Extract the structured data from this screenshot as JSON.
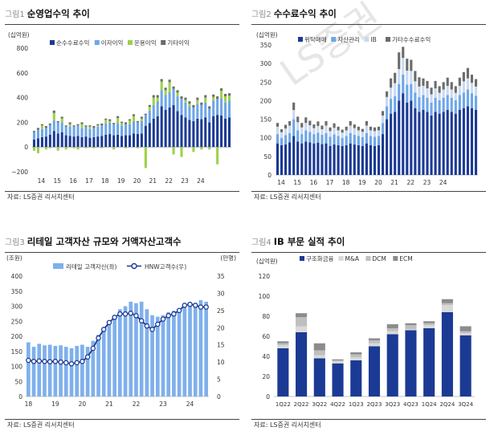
{
  "charts": [
    {
      "num": "그림1",
      "title": "순영업수익 추이",
      "source": "자료: LS증권 리서치센터",
      "unit": "(십억원)"
    },
    {
      "num": "그림2",
      "title": "수수료수익 추이",
      "source": "자료: LS증권 리서치센터",
      "unit": "(십억원)"
    },
    {
      "num": "그림3",
      "title": "리테일 고객자산 규모와 거액자산고객수",
      "source": "자료: LS증권 리서치센터",
      "unit": "(조원)",
      "unit_right": "(만명)"
    },
    {
      "num": "그림4",
      "title": "IB 부문 실적 추이",
      "source": "자료: LS증권 리서치센터",
      "unit": "(십억원)"
    }
  ],
  "chart_data": [
    {
      "type": "bar",
      "stacked": true,
      "series_names": [
        "순수수료수익",
        "이자이익",
        "운용이익",
        "기타이익"
      ],
      "colors": [
        "#1b3a94",
        "#6ea6e8",
        "#9ed14a",
        "#6b6b6b"
      ],
      "yticks": [
        -200,
        0,
        200,
        400,
        600,
        800
      ],
      "ylim": [
        -200,
        800
      ],
      "xticks": [
        "14",
        "15",
        "16",
        "17",
        "18",
        "19",
        "20",
        "21",
        "22",
        "23",
        "24"
      ],
      "series": [
        {
          "name": "순수수료수익",
          "values": [
            60,
            70,
            80,
            85,
            100,
            130,
            110,
            120,
            95,
            90,
            85,
            90,
            80,
            85,
            75,
            80,
            85,
            90,
            100,
            105,
            95,
            100,
            90,
            95,
            95,
            110,
            105,
            110,
            170,
            195,
            230,
            250,
            330,
            300,
            320,
            340,
            290,
            260,
            240,
            220,
            210,
            230,
            225,
            240,
            200,
            250,
            260,
            255,
            230,
            240
          ]
        },
        {
          "name": "이자이익",
          "values": [
            60,
            70,
            65,
            70,
            80,
            85,
            90,
            80,
            70,
            75,
            80,
            85,
            75,
            80,
            70,
            75,
            80,
            85,
            90,
            95,
            90,
            95,
            85,
            90,
            90,
            100,
            95,
            100,
            90,
            100,
            110,
            120,
            130,
            120,
            125,
            130,
            120,
            130,
            120,
            110,
            110,
            120,
            115,
            120,
            110,
            125,
            130,
            140,
            130,
            135
          ]
        },
        {
          "name": "운용이익",
          "values": [
            -30,
            -50,
            30,
            -20,
            -10,
            60,
            -30,
            30,
            -20,
            20,
            -10,
            -20,
            30,
            -10,
            20,
            -10,
            10,
            -10,
            30,
            10,
            -20,
            40,
            20,
            -10,
            30,
            40,
            -10,
            20,
            -170,
            30,
            60,
            30,
            70,
            40,
            80,
            -60,
            30,
            -80,
            20,
            20,
            -40,
            30,
            -20,
            40,
            -20,
            30,
            -140,
            60,
            50,
            40
          ]
        },
        {
          "name": "기타이익",
          "values": [
            10,
            15,
            10,
            15,
            10,
            20,
            10,
            15,
            10,
            15,
            10,
            10,
            15,
            10,
            10,
            15,
            10,
            15,
            10,
            15,
            10,
            15,
            10,
            15,
            10,
            15,
            10,
            15,
            10,
            15,
            20,
            20,
            20,
            20,
            20,
            20,
            20,
            20,
            20,
            20,
            20,
            20,
            20,
            20,
            20,
            20,
            20,
            20,
            20,
            20
          ]
        }
      ]
    },
    {
      "type": "bar",
      "stacked": true,
      "series_names": [
        "위탁매매",
        "자산관리",
        "IB",
        "기타수수료수익"
      ],
      "colors": [
        "#1b3a94",
        "#6ea6e8",
        "#c9d9f0",
        "#6b6b6b"
      ],
      "yticks": [
        0,
        50,
        100,
        150,
        200,
        250,
        300,
        350
      ],
      "ylim": [
        0,
        350
      ],
      "xticks": [
        "14",
        "15",
        "16",
        "17",
        "18",
        "19",
        "20",
        "21",
        "22",
        "23",
        "24"
      ],
      "series": [
        {
          "name": "위탁매매",
          "values": [
            85,
            80,
            82,
            88,
            105,
            90,
            85,
            90,
            88,
            85,
            87,
            83,
            85,
            78,
            82,
            80,
            78,
            80,
            85,
            82,
            80,
            78,
            85,
            80,
            78,
            80,
            110,
            150,
            165,
            170,
            200,
            220,
            195,
            200,
            180,
            170,
            175,
            170,
            160,
            170,
            165,
            170,
            175,
            170,
            165,
            175,
            180,
            185,
            180,
            175
          ]
        },
        {
          "name": "자산관리",
          "values": [
            25,
            20,
            25,
            25,
            45,
            30,
            25,
            30,
            28,
            25,
            27,
            25,
            28,
            25,
            27,
            25,
            22,
            25,
            28,
            26,
            25,
            24,
            28,
            25,
            25,
            25,
            30,
            35,
            40,
            42,
            45,
            50,
            48,
            45,
            42,
            40,
            40,
            38,
            35,
            38,
            36,
            38,
            40,
            38,
            36,
            40,
            42,
            45,
            40,
            38
          ]
        },
        {
          "name": "IB",
          "values": [
            20,
            15,
            18,
            20,
            25,
            22,
            18,
            20,
            18,
            16,
            18,
            15,
            20,
            15,
            18,
            15,
            14,
            15,
            20,
            18,
            15,
            14,
            20,
            15,
            15,
            15,
            20,
            25,
            30,
            35,
            40,
            45,
            38,
            35,
            30,
            28,
            25,
            25,
            22,
            25,
            20,
            22,
            25,
            22,
            20,
            25,
            30,
            30,
            28,
            25
          ]
        },
        {
          "name": "기타수수료수익",
          "values": [
            10,
            8,
            10,
            12,
            20,
            15,
            12,
            15,
            12,
            10,
            12,
            10,
            12,
            10,
            12,
            10,
            8,
            10,
            12,
            10,
            10,
            8,
            12,
            10,
            10,
            10,
            12,
            15,
            25,
            28,
            45,
            30,
            32,
            30,
            28,
            25,
            20,
            20,
            18,
            20,
            18,
            20,
            22,
            20,
            18,
            22,
            25,
            28,
            22,
            20
          ]
        }
      ]
    },
    {
      "type": "bar",
      "series_names": [
        "리테일 고객자산(좌)",
        "HNW고객수(우)"
      ],
      "colors": [
        "#7fb0ec",
        "#1b3a94"
      ],
      "yticks": [
        0,
        50,
        100,
        150,
        200,
        250,
        300,
        350,
        400
      ],
      "ylim": [
        0,
        400
      ],
      "yticks_right": [
        0,
        5,
        10,
        15,
        20,
        25,
        30,
        35
      ],
      "ylim_right": [
        0,
        35
      ],
      "xticks": [
        "18",
        "19",
        "20",
        "21",
        "22",
        "23",
        "24"
      ],
      "series": [
        {
          "name": "리테일 고객자산(좌)",
          "values": [
            180,
            165,
            175,
            170,
            172,
            168,
            170,
            165,
            160,
            168,
            172,
            165,
            185,
            205,
            225,
            250,
            270,
            290,
            300,
            315,
            310,
            315,
            290,
            270,
            265,
            270,
            280,
            285,
            290,
            300,
            305,
            310,
            320,
            315
          ]
        },
        {
          "name": "HNW고객수(우)",
          "values": [
            10.5,
            10.2,
            10.3,
            10.2,
            10.1,
            10.2,
            10.0,
            9.8,
            9.5,
            9.8,
            10.2,
            11.5,
            14.0,
            17.0,
            19.5,
            21.5,
            23.0,
            24.0,
            24.0,
            24.2,
            23.5,
            22.0,
            20.5,
            19.5,
            21.0,
            22.5,
            23.5,
            24.0,
            25.0,
            26.5,
            26.8,
            26.5,
            26.0,
            26.0
          ]
        }
      ]
    },
    {
      "type": "bar",
      "stacked": true,
      "categories": [
        "1Q22",
        "2Q22",
        "3Q22",
        "4Q22",
        "1Q23",
        "2Q23",
        "3Q23",
        "4Q23",
        "1Q24",
        "2Q24",
        "3Q24"
      ],
      "series_names": [
        "구조화금융",
        "M&A",
        "DCM",
        "ECM"
      ],
      "colors": [
        "#1b3a94",
        "#d9d9d9",
        "#bfbfbf",
        "#8c8c8c"
      ],
      "yticks": [
        0,
        20,
        40,
        60,
        80,
        100,
        120
      ],
      "ylim": [
        0,
        120
      ],
      "series": [
        {
          "name": "구조화금융",
          "values": [
            48,
            64,
            38,
            33,
            36,
            50,
            62,
            66,
            68,
            84,
            61
          ]
        },
        {
          "name": "M&A",
          "values": [
            3,
            6,
            3,
            2,
            3,
            3,
            3,
            1,
            3,
            7,
            2
          ]
        },
        {
          "name": "DCM",
          "values": [
            2,
            9,
            5,
            1,
            3,
            3,
            3,
            4,
            2,
            2,
            2
          ]
        },
        {
          "name": "ECM",
          "values": [
            2,
            4,
            7,
            1,
            2,
            2,
            4,
            2,
            2,
            4,
            5
          ]
        }
      ]
    }
  ]
}
